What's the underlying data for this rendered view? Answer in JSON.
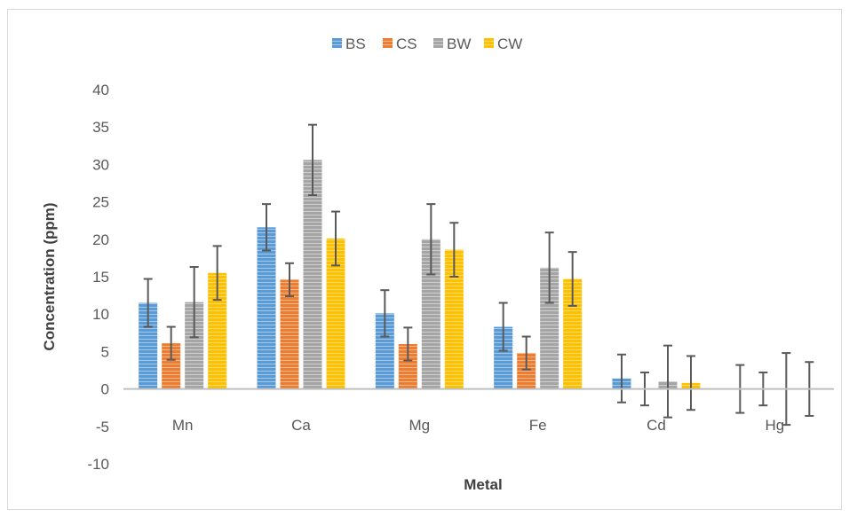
{
  "chart_data": {
    "type": "bar",
    "title": "",
    "xlabel": "Metal",
    "ylabel": "Concentration (ppm)",
    "ylim": [
      -10,
      40
    ],
    "yticks": [
      -10,
      -5,
      0,
      5,
      10,
      15,
      20,
      25,
      30,
      35,
      40
    ],
    "grid": false,
    "legend_position": "top",
    "categories": [
      "Mn",
      "Ca",
      "Mg",
      "Fe",
      "Cd",
      "Hg"
    ],
    "series": [
      {
        "name": "BS",
        "color": "#5b9bd5",
        "values": [
          11.5,
          21.6,
          10.1,
          8.3,
          1.4,
          0
        ],
        "errors": [
          3.2,
          3.1,
          3.1,
          3.2,
          3.2,
          3.2
        ]
      },
      {
        "name": "CS",
        "color": "#ed7d31",
        "values": [
          6.1,
          14.6,
          6.0,
          4.8,
          0,
          0
        ],
        "errors": [
          2.2,
          2.2,
          2.2,
          2.2,
          2.2,
          2.2
        ]
      },
      {
        "name": "BW",
        "color": "#a5a5a5",
        "values": [
          11.6,
          30.6,
          20.0,
          16.2,
          1.0,
          0
        ],
        "errors": [
          4.7,
          4.7,
          4.7,
          4.7,
          4.8,
          4.8
        ]
      },
      {
        "name": "CW",
        "color": "#ffc000",
        "values": [
          15.5,
          20.1,
          18.6,
          14.7,
          0.8,
          0
        ],
        "errors": [
          3.6,
          3.6,
          3.6,
          3.6,
          3.6,
          3.6
        ]
      }
    ]
  }
}
